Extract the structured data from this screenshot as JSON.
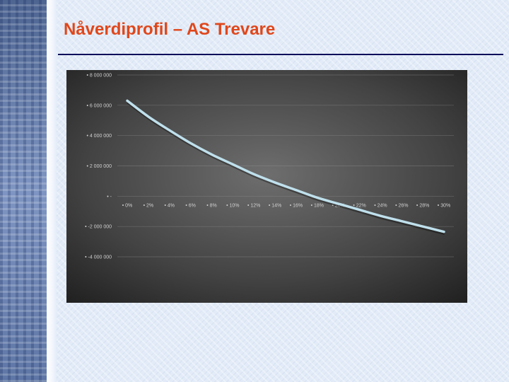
{
  "slide": {
    "title": "Nåverdiprofil – AS Trevare"
  },
  "chart_data": {
    "type": "line",
    "title": "",
    "xlabel": "",
    "ylabel": "",
    "x_tick_labels": [
      "0%",
      "2%",
      "4%",
      "6%",
      "8%",
      "10%",
      "12%",
      "14%",
      "16%",
      "18%",
      "20%",
      "22%",
      "24%",
      "26%",
      "28%",
      "30%"
    ],
    "y_tick_labels": [
      "8 000 000",
      "6 000 000",
      "4 000 000",
      "2 000 000",
      "-",
      "-2 000 000",
      "-4 000 000"
    ],
    "ylim": [
      -4000000,
      8000000
    ],
    "xlim": [
      0,
      30
    ],
    "grid": true,
    "legend": "none",
    "line_color": "#bfe0ec",
    "series": [
      {
        "x": [
          0,
          2,
          4,
          6,
          8,
          10,
          12,
          14,
          16,
          18,
          20,
          22,
          24,
          26,
          28,
          30
        ],
        "values": [
          6300000,
          5250000,
          4350000,
          3500000,
          2750000,
          2100000,
          1450000,
          900000,
          400000,
          -100000,
          -500000,
          -900000,
          -1300000,
          -1650000,
          -2000000,
          -2350000
        ]
      }
    ]
  }
}
